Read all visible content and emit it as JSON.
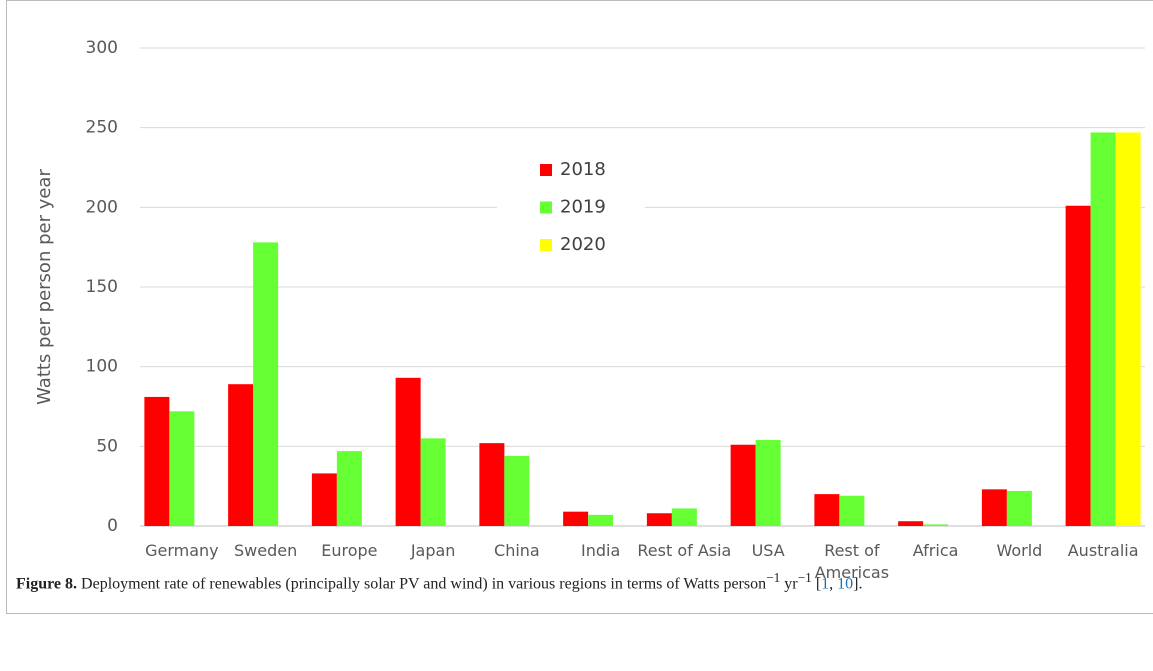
{
  "chart_data": {
    "type": "bar",
    "y_label": "Watts per person per year",
    "categories": [
      "Germany",
      "Sweden",
      "Europe",
      "Japan",
      "China",
      "India",
      "Rest of Asia",
      "USA",
      "Rest of Americas",
      "Africa",
      "World",
      "Australia"
    ],
    "series": [
      {
        "name": "2018",
        "color": "#ff0000",
        "values": [
          81,
          89,
          33,
          93,
          52,
          9,
          8,
          51,
          20,
          3,
          23,
          201
        ]
      },
      {
        "name": "2019",
        "color": "#66ff33",
        "values": [
          72,
          178,
          47,
          55,
          44,
          7,
          11,
          54,
          19,
          1,
          22,
          247
        ]
      },
      {
        "name": "2020",
        "color": "#ffff00",
        "values": [
          null,
          null,
          null,
          null,
          null,
          null,
          null,
          null,
          null,
          null,
          null,
          247
        ]
      }
    ],
    "ylim": [
      0,
      300
    ],
    "yticks": [
      0,
      50,
      100,
      150,
      200,
      250,
      300
    ],
    "grid": true
  },
  "caption": {
    "label": "Figure 8.",
    "text": "Deployment rate of renewables (principally solar PV and wind) in various regions in terms of Watts",
    "unit1": "person",
    "exp1": "−1",
    "unit2": "yr",
    "exp2": "−1",
    "refs": [
      "1",
      "10"
    ]
  }
}
